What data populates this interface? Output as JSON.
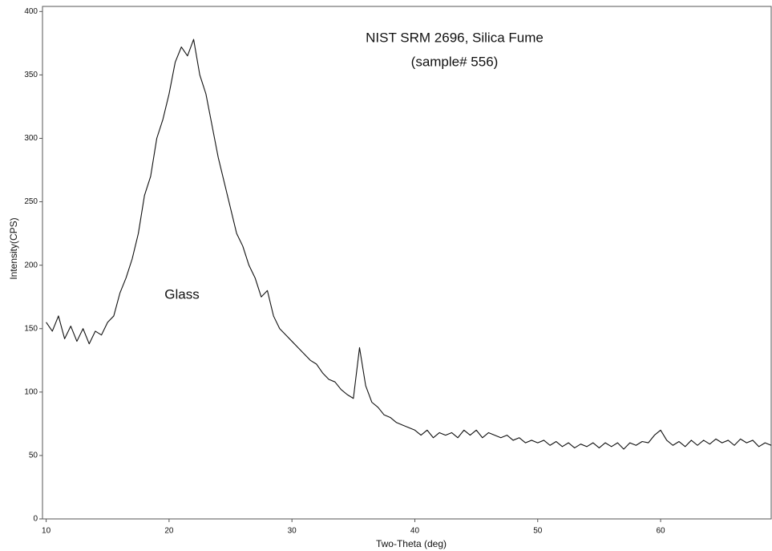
{
  "chart_data": {
    "type": "line",
    "title": "NIST SRM 2696, Silica Fume",
    "subtitle": "(sample# 556)",
    "annotations": [
      "Glass"
    ],
    "x_label": "Two-Theta (deg)",
    "y_label": "Intensity(CPS)",
    "xlim": [
      9.7,
      69
    ],
    "ylim": [
      0,
      404
    ],
    "xticks": [
      10,
      20,
      30,
      40,
      50,
      60
    ],
    "yticks": [
      0,
      50,
      100,
      150,
      200,
      250,
      300,
      350,
      400
    ],
    "grid": false,
    "x": [
      10,
      10.5,
      11,
      11.5,
      12,
      12.5,
      13,
      13.5,
      14,
      14.5,
      15,
      15.5,
      16,
      16.5,
      17,
      17.5,
      18,
      18.5,
      19,
      19.5,
      20,
      20.5,
      21,
      21.5,
      22,
      22.5,
      23,
      23.5,
      24,
      24.5,
      25,
      25.5,
      26,
      26.5,
      27,
      27.5,
      28,
      28.5,
      29,
      29.5,
      30,
      30.5,
      31,
      31.5,
      32,
      32.5,
      33,
      33.5,
      34,
      34.5,
      35,
      35.5,
      36,
      36.5,
      37,
      37.5,
      38,
      38.5,
      39,
      39.5,
      40,
      40.5,
      41,
      41.5,
      42,
      42.5,
      43,
      43.5,
      44,
      44.5,
      45,
      45.5,
      46,
      46.5,
      47,
      47.5,
      48,
      48.5,
      49,
      49.5,
      50,
      50.5,
      51,
      51.5,
      52,
      52.5,
      53,
      53.5,
      54,
      54.5,
      55,
      55.5,
      56,
      56.5,
      57,
      57.5,
      58,
      58.5,
      59,
      59.5,
      60,
      60.5,
      61,
      61.5,
      62,
      62.5,
      63,
      63.5,
      64,
      64.5,
      65,
      65.5,
      66,
      66.5,
      67,
      67.5,
      68,
      68.5,
      69
    ],
    "series": [
      {
        "name": "Silica Fume",
        "color": "#111111",
        "values": [
          155,
          148,
          160,
          142,
          152,
          140,
          150,
          138,
          148,
          145,
          155,
          160,
          178,
          190,
          205,
          225,
          255,
          270,
          300,
          315,
          335,
          360,
          372,
          365,
          378,
          350,
          335,
          310,
          285,
          265,
          245,
          225,
          215,
          200,
          190,
          175,
          180,
          160,
          150,
          145,
          140,
          135,
          130,
          125,
          122,
          115,
          110,
          108,
          102,
          98,
          95,
          135,
          105,
          92,
          88,
          82,
          80,
          76,
          74,
          72,
          70,
          66,
          70,
          64,
          68,
          66,
          68,
          64,
          70,
          66,
          70,
          64,
          68,
          66,
          64,
          66,
          62,
          64,
          60,
          62,
          60,
          62,
          58,
          61,
          57,
          60,
          56,
          59,
          57,
          60,
          56,
          60,
          57,
          60,
          55,
          60,
          58,
          61,
          60,
          66,
          70,
          62,
          58,
          61,
          57,
          62,
          58,
          62,
          59,
          63,
          60,
          62,
          58,
          63,
          60,
          62,
          57,
          60,
          58
        ]
      }
    ]
  }
}
